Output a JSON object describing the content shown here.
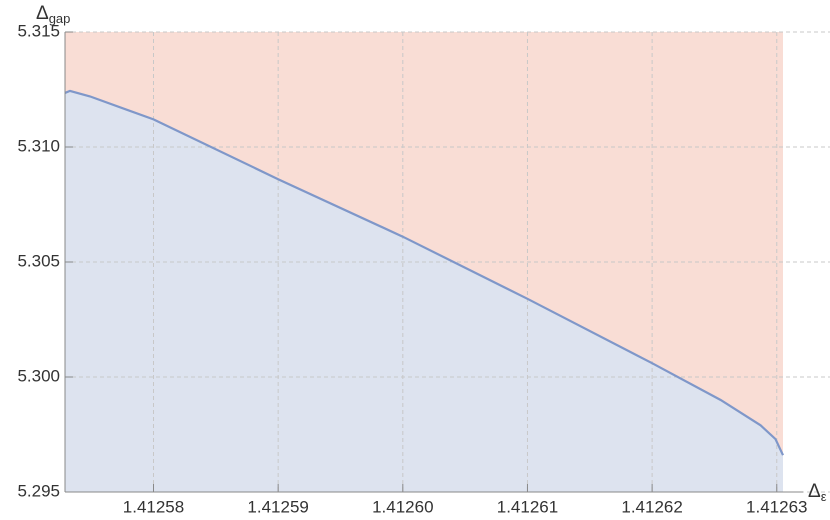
{
  "chart_data": {
    "type": "region",
    "x_label": "Δ",
    "x_label_sub": "ε",
    "y_label": "Δ",
    "y_label_sub": "gap",
    "x": [
      1.4125729,
      1.4125733,
      1.4125749,
      1.41258,
      1.41259,
      1.4126,
      1.41261,
      1.41262,
      1.4126255,
      1.4126287,
      1.4126299,
      1.4126305
    ],
    "series": [
      {
        "color": "#7f97c9",
        "values": [
          5.31235,
          5.31244,
          5.3122,
          5.3112,
          5.3086,
          5.3061,
          5.3034,
          5.3006,
          5.299,
          5.2979,
          5.2973,
          5.2966
        ]
      }
    ],
    "below_color": "#dde3ef",
    "above_color": "#f9ddd5",
    "xlim": [
      1.4125729,
      1.4126305
    ],
    "ylim": [
      5.295,
      5.315
    ],
    "xticks": [
      1.41258,
      1.41259,
      {
        "value": 1.4126,
        "label": "1.41260"
      },
      1.41261,
      1.41262,
      1.41263
    ],
    "yticks": [
      {
        "value": 5.295,
        "label": "5.295"
      },
      {
        "value": 5.3,
        "label": "5.300"
      },
      5.305,
      {
        "value": 5.31,
        "label": "5.310"
      },
      5.315
    ],
    "grid": true
  }
}
